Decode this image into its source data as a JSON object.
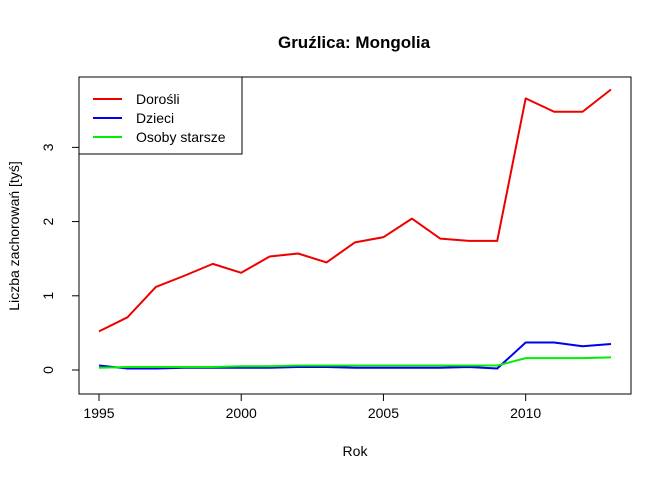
{
  "chart_data": {
    "type": "line",
    "title": "Gruźlica: Mongolia",
    "xlabel": "Rok",
    "ylabel": "Liczba zachorowań [tyś]",
    "xlim": [
      1995,
      2013
    ],
    "ylim": [
      0,
      3.8
    ],
    "x_ticks": [
      1995,
      2000,
      2005,
      2010
    ],
    "y_ticks": [
      0,
      1,
      2,
      3
    ],
    "legend_position": "top-left",
    "x": [
      1995,
      1996,
      1997,
      1998,
      1999,
      2000,
      2001,
      2002,
      2003,
      2004,
      2005,
      2006,
      2007,
      2008,
      2009,
      2010,
      2011,
      2012,
      2013
    ],
    "series": [
      {
        "name": "Dorośli",
        "color": "#ee0000",
        "values": [
          0.52,
          0.71,
          1.12,
          1.27,
          1.43,
          1.31,
          1.53,
          1.57,
          1.45,
          1.72,
          1.79,
          2.04,
          1.77,
          1.74,
          1.74,
          3.66,
          3.48,
          3.48,
          3.78
        ]
      },
      {
        "name": "Dzieci",
        "color": "#0000ee",
        "values": [
          0.06,
          0.02,
          0.02,
          0.03,
          0.03,
          0.03,
          0.03,
          0.04,
          0.04,
          0.03,
          0.03,
          0.03,
          0.03,
          0.04,
          0.02,
          0.37,
          0.37,
          0.32,
          0.35
        ]
      },
      {
        "name": "Osoby starsze",
        "color": "#00ee00",
        "values": [
          0.03,
          0.04,
          0.04,
          0.04,
          0.04,
          0.05,
          0.05,
          0.06,
          0.06,
          0.06,
          0.06,
          0.06,
          0.06,
          0.06,
          0.06,
          0.16,
          0.16,
          0.16,
          0.17
        ]
      }
    ]
  }
}
